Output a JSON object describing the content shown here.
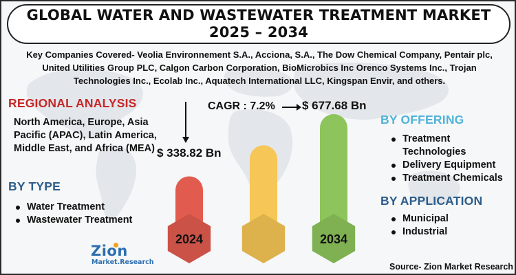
{
  "title": {
    "line1": "GLOBAL WATER AND WASTEWATER TREATMENT MARKET",
    "line2": "2025 – 2034"
  },
  "companies": "Key Companies Covered- Veolia Environnement S.A., Acciona, S.A., The Dow Chemical Company, Pentair plc, United Utilities Group PLC, Calgon Carbon Corporation, BioMicrobics Inc Orenco Systems Inc., Trojan Technologies Inc., Ecolab Inc., Aquatech International LLC, Kingspan Envir, and others.",
  "regional": {
    "title": "REGIONAL ANALYSIS",
    "text": "North America, Europe, Asia Pacific (APAC), Latin America, Middle East, and Africa (MEA)"
  },
  "by_type": {
    "title": "BY TYPE",
    "items": [
      "Water Treatment",
      "Wastewater Treatment"
    ]
  },
  "by_offering": {
    "title": "BY OFFERING",
    "items": [
      "Treatment Technologies",
      "Delivery Equipment",
      "Treatment Chemicals"
    ]
  },
  "by_application": {
    "title": "BY APPLICATION",
    "items": [
      "Municipal",
      "Industrial"
    ]
  },
  "cagr": "CAGR : 7.2%",
  "source": "Source- Zion Market Research",
  "logo": {
    "top": "Zion",
    "bottom": "Market.Research"
  },
  "colors": {
    "bar_2024": "#e25b4f",
    "bar_middle": "#f6c656",
    "bar_2034": "#8dc45b",
    "regional_title": "#c62828",
    "section_title": "#2d5d8a",
    "offering_title": "#4fb3d9"
  },
  "chart_data": {
    "type": "bar",
    "categories": [
      "2024",
      "",
      "2034"
    ],
    "values": [
      338.82,
      508,
      677.68
    ],
    "value_labels": [
      "$ 338.82 Bn",
      "",
      "$ 677.68 Bn"
    ],
    "unit": "USD Bn",
    "cagr": "7.2%"
  }
}
